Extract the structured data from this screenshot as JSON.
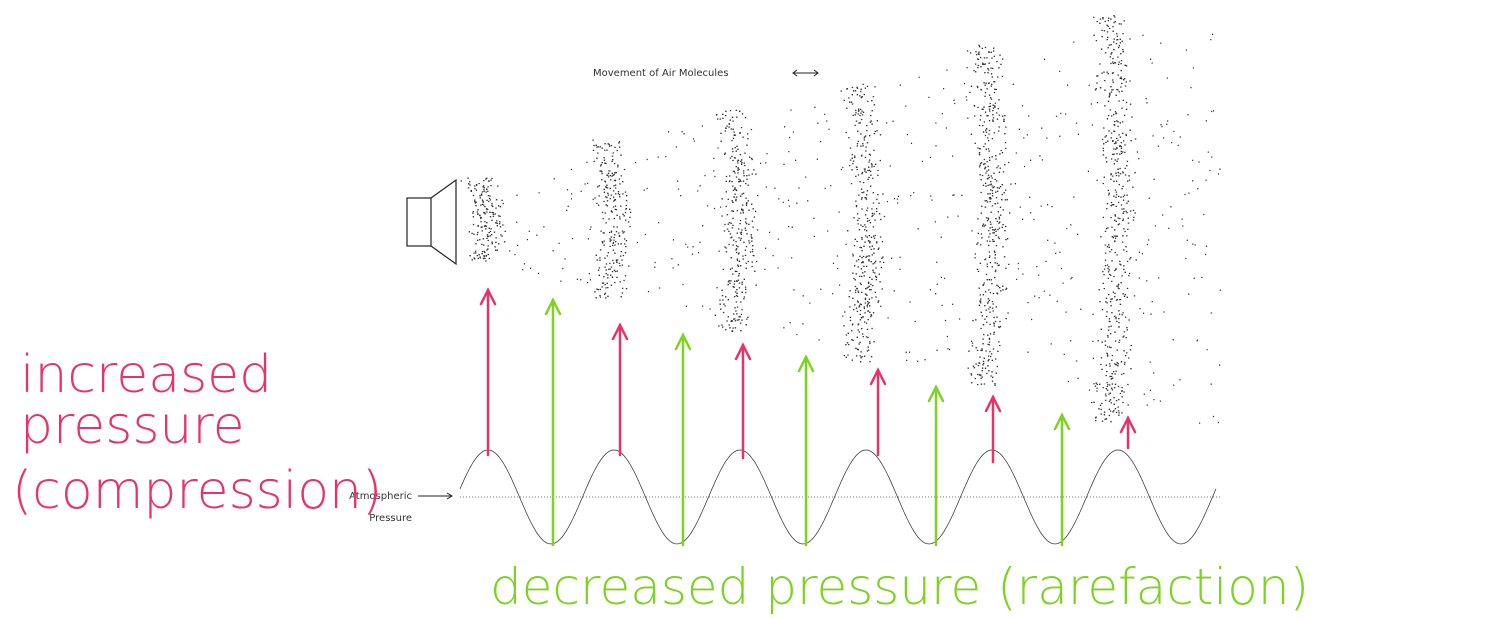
{
  "labels": {
    "movement": "Movement of Air Molecules",
    "atmospheric": [
      "Atmospheric",
      "Pressure"
    ],
    "increased": [
      "increased",
      "pressure",
      "(compression)"
    ],
    "decreased": "decreased pressure (rarefaction)"
  }
}
